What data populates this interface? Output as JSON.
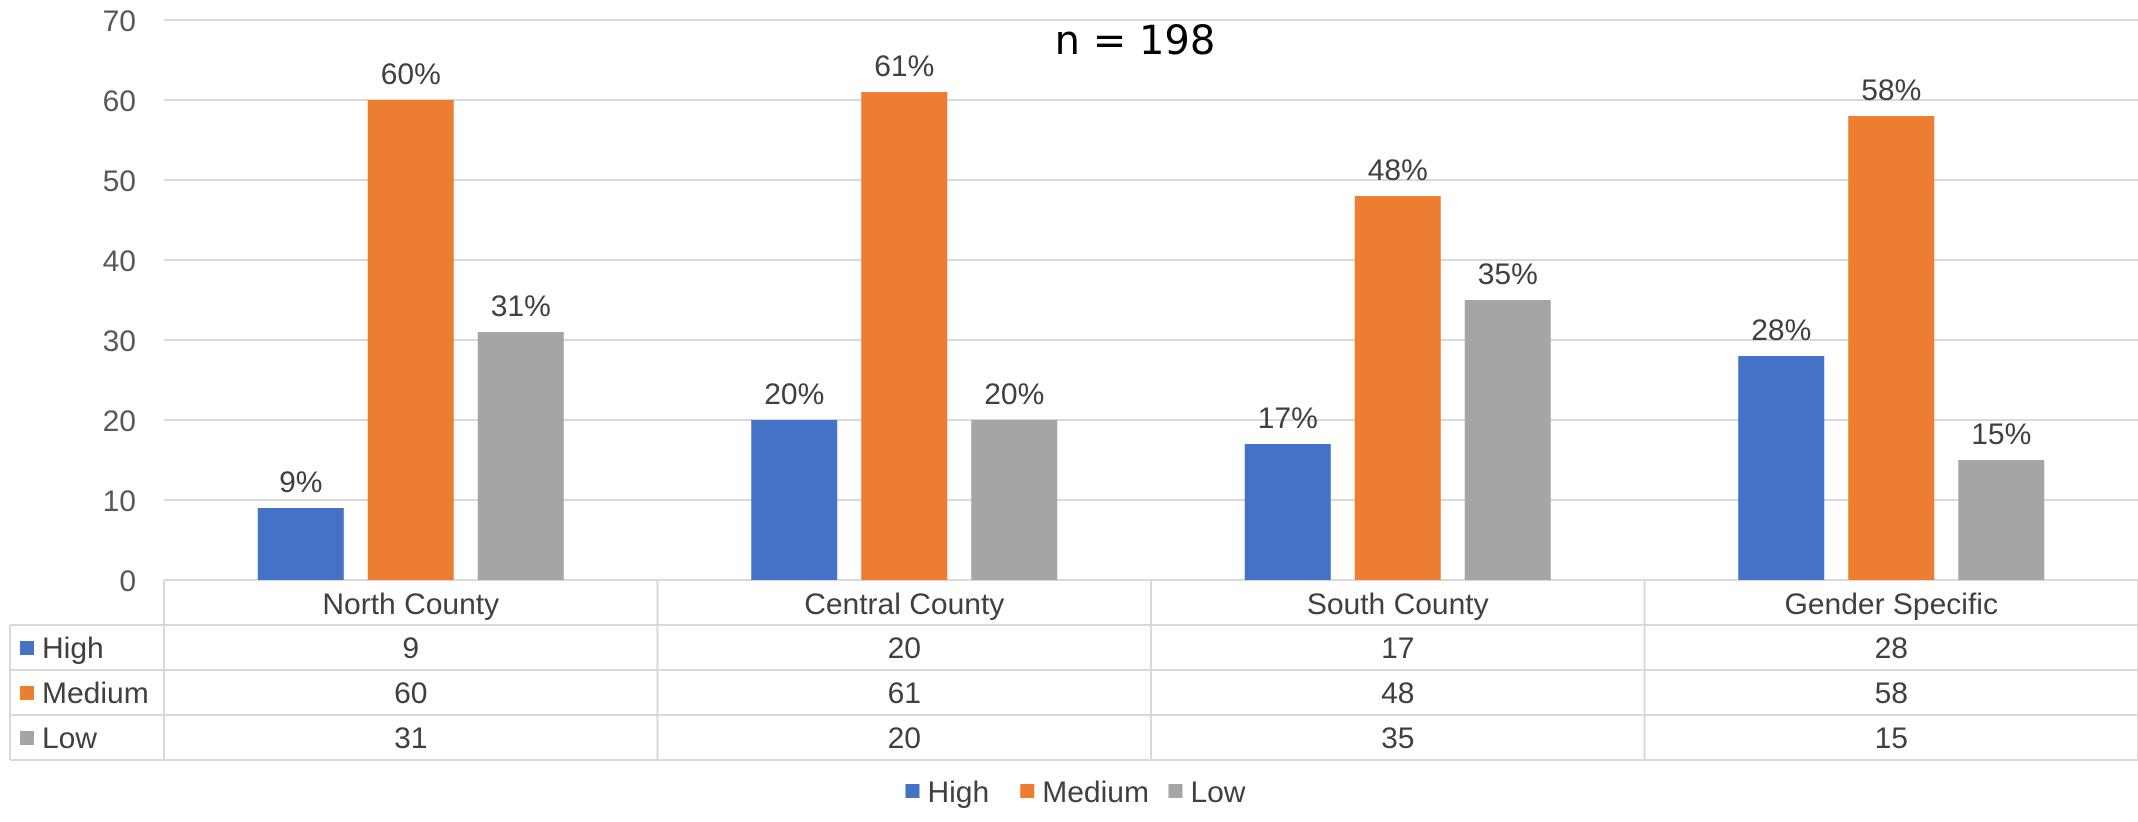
{
  "chart_data": {
    "type": "bar",
    "title": "n = 198",
    "categories": [
      "North County",
      "Central County",
      "South County",
      "Gender Specific"
    ],
    "series": [
      {
        "name": "High",
        "color": "#4472C4",
        "values": [
          9,
          20,
          17,
          28
        ],
        "labels": [
          "9%",
          "20%",
          "17%",
          "28%"
        ]
      },
      {
        "name": "Medium",
        "color": "#ED7D31",
        "values": [
          60,
          61,
          48,
          58
        ],
        "labels": [
          "60%",
          "61%",
          "48%",
          "58%"
        ]
      },
      {
        "name": "Low",
        "color": "#A5A5A5",
        "values": [
          31,
          20,
          35,
          15
        ],
        "labels": [
          "31%",
          "20%",
          "35%",
          "15%"
        ]
      }
    ],
    "ylim": [
      0,
      70
    ],
    "yticks": [
      0,
      10,
      20,
      30,
      40,
      50,
      60,
      70
    ],
    "grid": true,
    "legend": "bottom-center",
    "data_table": true
  }
}
